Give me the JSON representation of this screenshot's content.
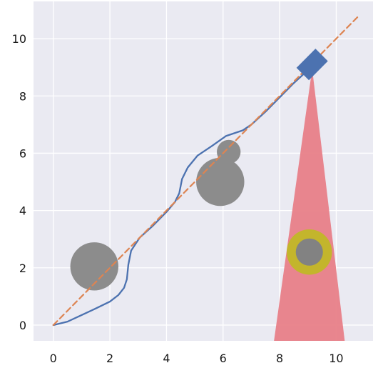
{
  "chart_data": {
    "type": "line",
    "title": "",
    "xlabel": "",
    "ylabel": "",
    "xlim": [
      -0.7,
      11.3
    ],
    "ylim": [
      -0.55,
      11.3
    ],
    "x_ticks": [
      0,
      2,
      4,
      6,
      8,
      10
    ],
    "y_ticks": [
      0,
      2,
      4,
      6,
      8,
      10
    ],
    "grid": true,
    "legend": "none",
    "background": "#eaeaf2",
    "series": [
      {
        "style": "solid",
        "color": "#4c72b0",
        "points": [
          [
            0,
            0
          ],
          [
            0.5,
            0.12
          ],
          [
            1,
            0.35
          ],
          [
            1.5,
            0.58
          ],
          [
            2,
            0.82
          ],
          [
            2.3,
            1.05
          ],
          [
            2.5,
            1.3
          ],
          [
            2.6,
            1.6
          ],
          [
            2.65,
            2.1
          ],
          [
            2.75,
            2.6
          ],
          [
            3.05,
            3.05
          ],
          [
            3.5,
            3.45
          ],
          [
            4,
            3.95
          ],
          [
            4.3,
            4.3
          ],
          [
            4.45,
            4.6
          ],
          [
            4.55,
            5.1
          ],
          [
            4.75,
            5.5
          ],
          [
            5.1,
            5.92
          ],
          [
            5.6,
            6.25
          ],
          [
            6.1,
            6.6
          ],
          [
            6.7,
            6.8
          ],
          [
            7,
            7
          ],
          [
            7.5,
            7.45
          ],
          [
            8,
            7.95
          ],
          [
            8.5,
            8.45
          ],
          [
            9,
            8.9
          ],
          [
            9.2,
            9.1
          ]
        ]
      },
      {
        "style": "dashed",
        "color": "#dd8452",
        "points": [
          [
            0,
            0
          ],
          [
            10.8,
            10.8
          ]
        ]
      }
    ],
    "obstacles": [
      {
        "cx": 1.45,
        "cy": 2.05,
        "r": 0.85,
        "color": "#8c8c8c"
      },
      {
        "cx": 5.9,
        "cy": 5.0,
        "r": 0.85,
        "color": "#8c8c8c"
      },
      {
        "cx": 6.2,
        "cy": 6.05,
        "r": 0.42,
        "color": "#8c8c8c"
      }
    ],
    "goal": {
      "cx": 9.05,
      "cy": 2.55,
      "r_outer": 0.8,
      "r_inner": 0.48,
      "ring_color": "#c3b52c",
      "inner_color": "#828282"
    },
    "cone": {
      "apex": [
        9.15,
        8.95
      ],
      "base_left": [
        7.8,
        -0.55
      ],
      "base_right": [
        10.3,
        -0.55
      ],
      "color": "#e88088"
    },
    "robot": {
      "cx": 9.15,
      "cy": 9.1,
      "w": 0.62,
      "h": 0.95,
      "angle_deg": 45,
      "color": "#4c72b0"
    }
  }
}
